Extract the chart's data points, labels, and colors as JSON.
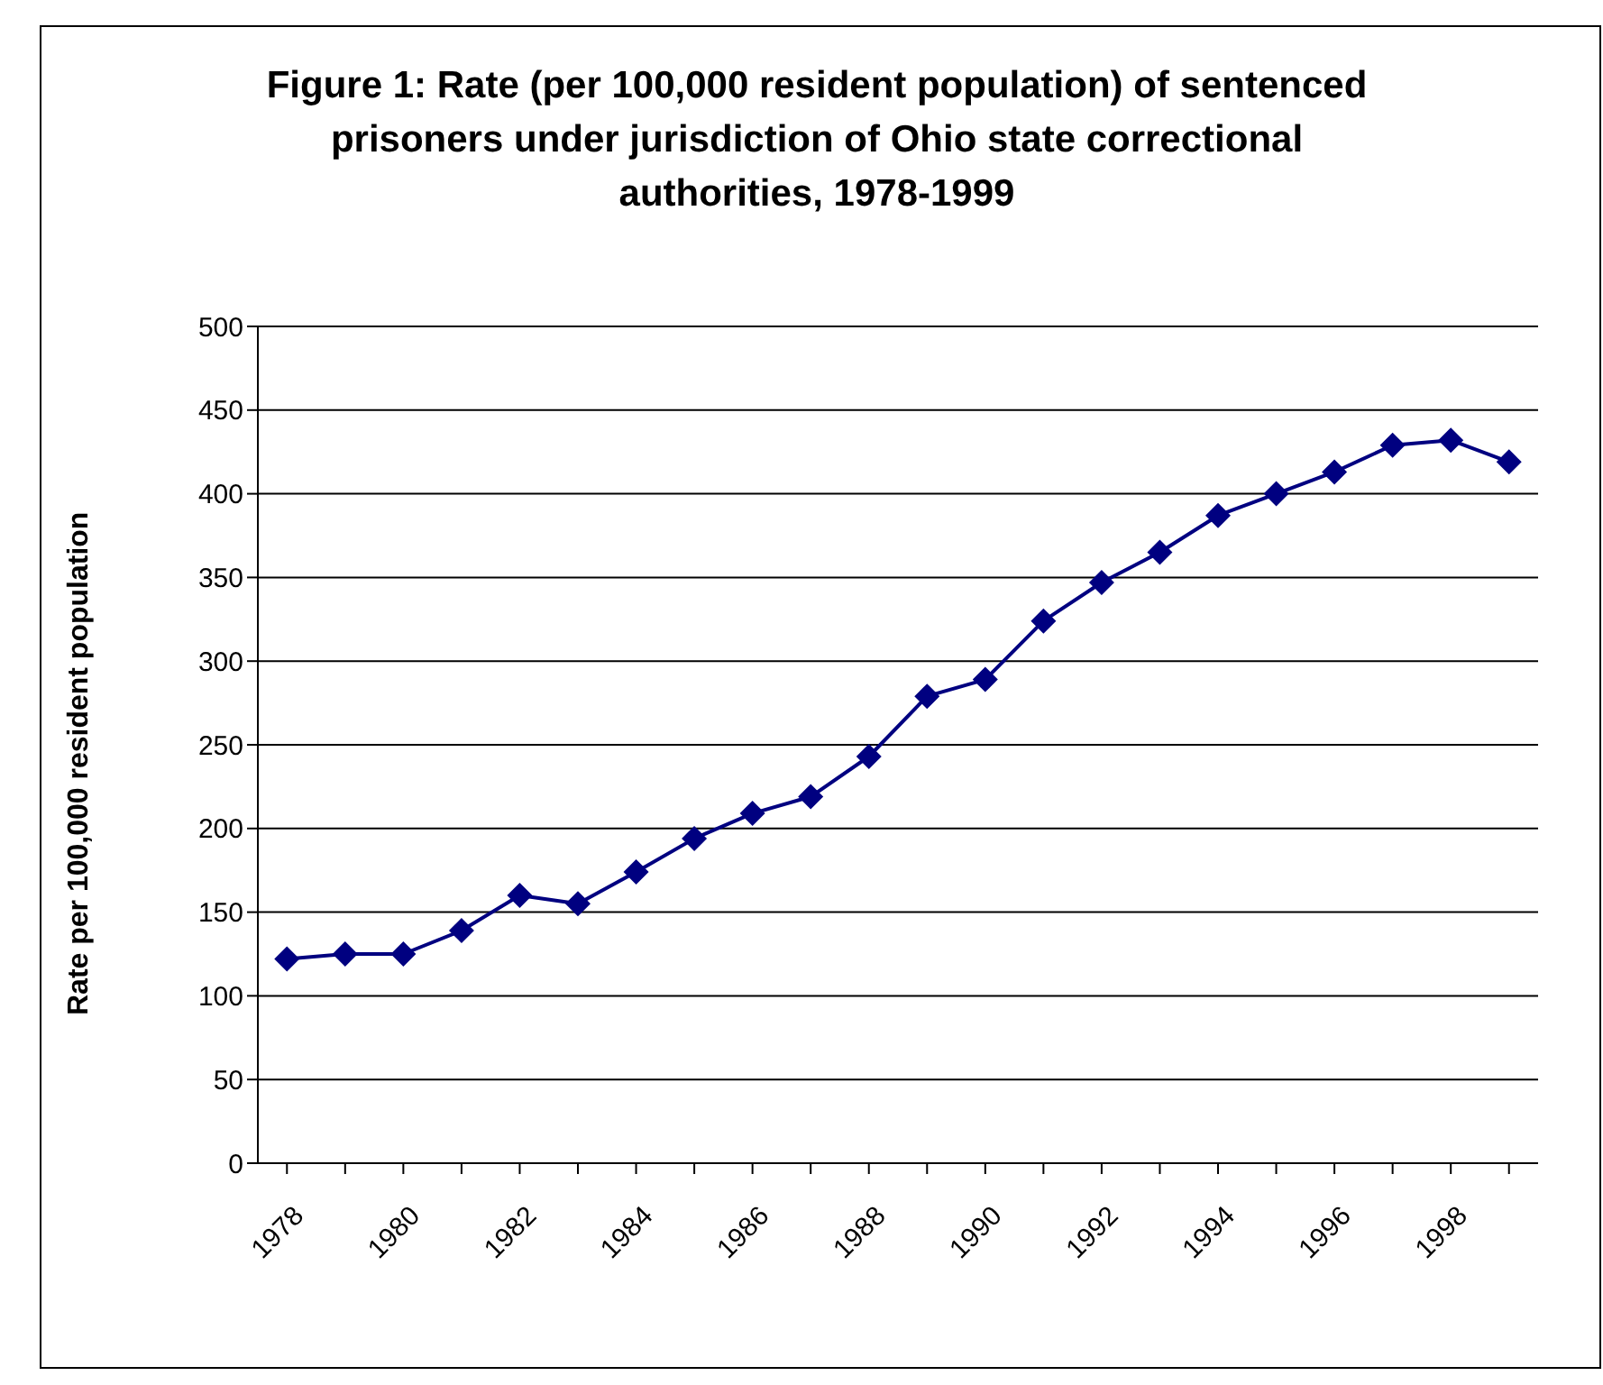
{
  "chart_data": {
    "type": "line",
    "title": "Figure 1: Rate (per 100,000 resident population) of sentenced prisoners under jurisdiction of Ohio state correctional authorities, 1978-1999",
    "ylabel": "Rate per 100,000 resident population",
    "categories": [
      "1978",
      null,
      "1980",
      null,
      "1982",
      null,
      "1984",
      null,
      "1986",
      null,
      "1988",
      null,
      "1990",
      null,
      "1992",
      null,
      "1994",
      null,
      "1996",
      null,
      "1998",
      null
    ],
    "series": [
      {
        "color": "#000080",
        "values": [
          122,
          125,
          125,
          139,
          160,
          155,
          174,
          194,
          209,
          219,
          243,
          279,
          289,
          324,
          347,
          365,
          387,
          400,
          413,
          429,
          432,
          419
        ]
      }
    ],
    "ylim": [
      0,
      500
    ],
    "yticks": [
      0,
      50,
      100,
      150,
      200,
      250,
      300,
      350,
      400,
      450,
      500
    ],
    "grid": "y",
    "marker": "diamond",
    "line_style": "solid"
  }
}
